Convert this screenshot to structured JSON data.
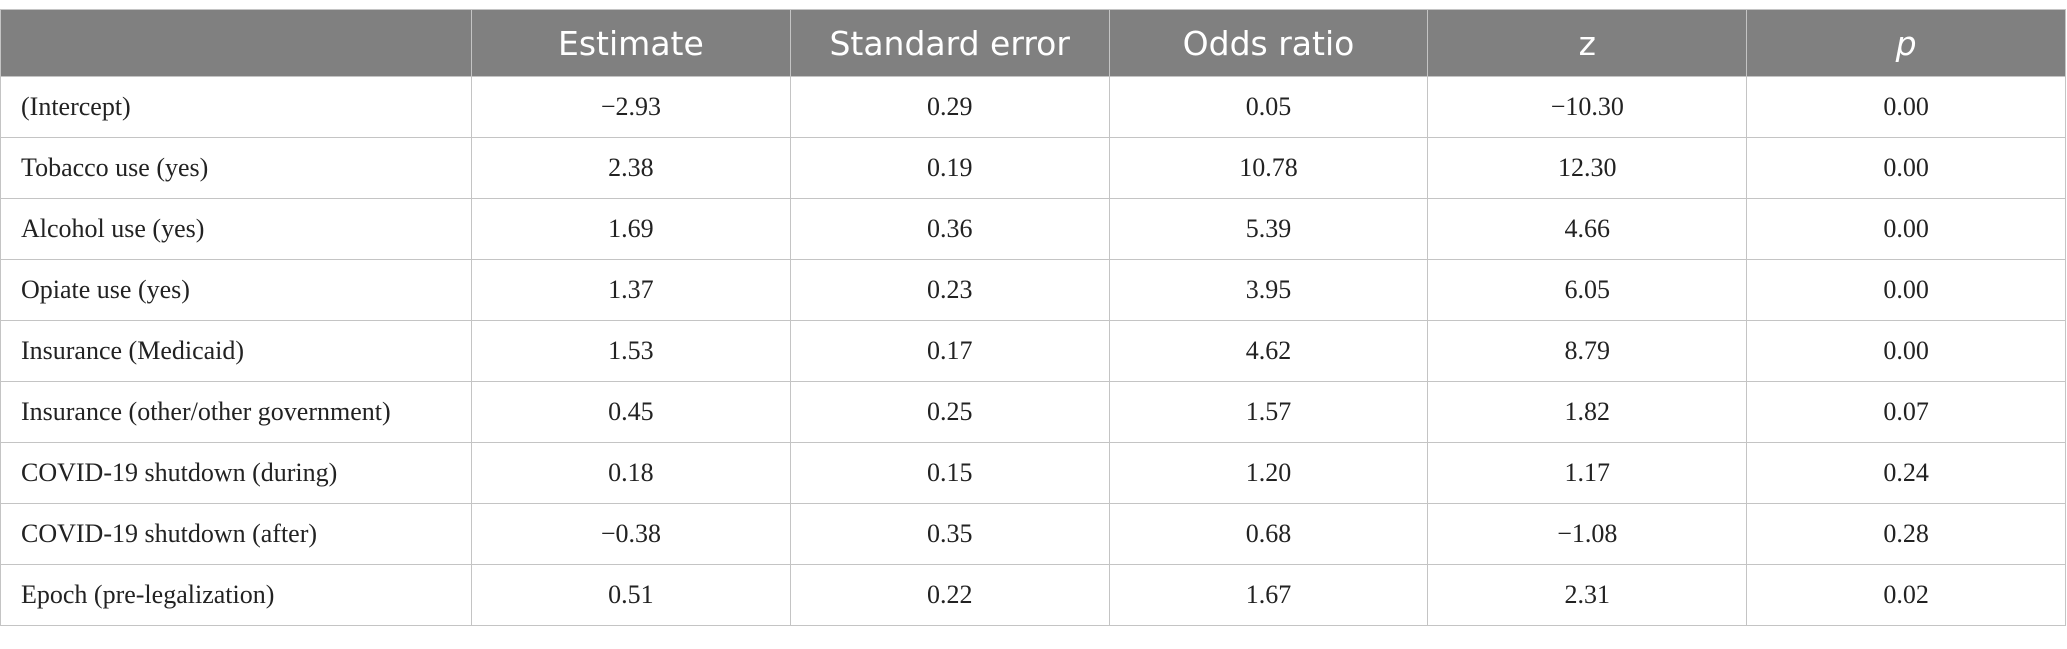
{
  "table": {
    "columns": [
      "Estimate",
      "Standard error",
      "Odds ratio",
      "z",
      "p"
    ],
    "rows": [
      [
        "(Intercept)",
        "−2.93",
        "0.29",
        "0.05",
        "−10.30",
        "0.00"
      ],
      [
        "Tobacco use (yes)",
        "2.38",
        "0.19",
        "10.78",
        "12.30",
        "0.00"
      ],
      [
        "Alcohol use (yes)",
        "1.69",
        "0.36",
        "5.39",
        "4.66",
        "0.00"
      ],
      [
        "Opiate use (yes)",
        "1.37",
        "0.23",
        "3.95",
        "6.05",
        "0.00"
      ],
      [
        "Insurance (Medicaid)",
        "1.53",
        "0.17",
        "4.62",
        "8.79",
        "0.00"
      ],
      [
        "Insurance (other/other government)",
        "0.45",
        "0.25",
        "1.57",
        "1.82",
        "0.07"
      ],
      [
        "COVID-19 shutdown (during)",
        "0.18",
        "0.15",
        "1.20",
        "1.17",
        "0.24"
      ],
      [
        "COVID-19 shutdown (after)",
        "−0.38",
        "0.35",
        "0.68",
        "−1.08",
        "0.28"
      ],
      [
        "Epoch (pre-legalization)",
        "0.51",
        "0.22",
        "1.67",
        "2.31",
        "0.02"
      ]
    ]
  }
}
